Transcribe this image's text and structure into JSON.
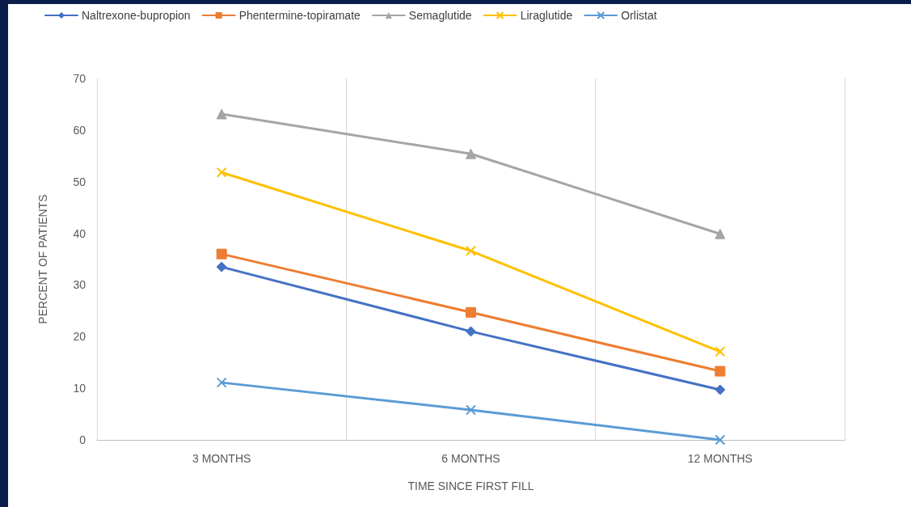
{
  "chart_data": {
    "type": "line",
    "xlabel": "TIME SINCE FIRST FILL",
    "ylabel": "PERCENT OF PATIENTS",
    "categories": [
      "3 MONTHS",
      "6 MONTHS",
      "12 MONTHS"
    ],
    "ylim": [
      0,
      70
    ],
    "yticks": [
      0,
      10,
      20,
      30,
      40,
      50,
      60,
      70
    ],
    "grid": "x",
    "legend": "top",
    "line_style": "solid",
    "series": [
      {
        "name": "Naltrexone-bupropion",
        "color": "#4472c4",
        "marker": "diamond",
        "values": [
          33.5,
          21.0,
          9.7
        ]
      },
      {
        "name": "Phentermine-topiramate",
        "color": "#ed7d31",
        "marker": "square",
        "values": [
          36.0,
          24.7,
          13.3
        ]
      },
      {
        "name": "Semaglutide",
        "color": "#a5a5a5",
        "marker": "triangle",
        "values": [
          63.1,
          55.4,
          39.9
        ]
      },
      {
        "name": "Liraglutide",
        "color": "#ffc000",
        "marker": "cross",
        "values": [
          51.8,
          36.6,
          17.1
        ]
      },
      {
        "name": "Orlistat",
        "color": "#5b9bd5",
        "marker": "cross",
        "values": [
          11.1,
          5.8,
          0
        ]
      }
    ]
  }
}
